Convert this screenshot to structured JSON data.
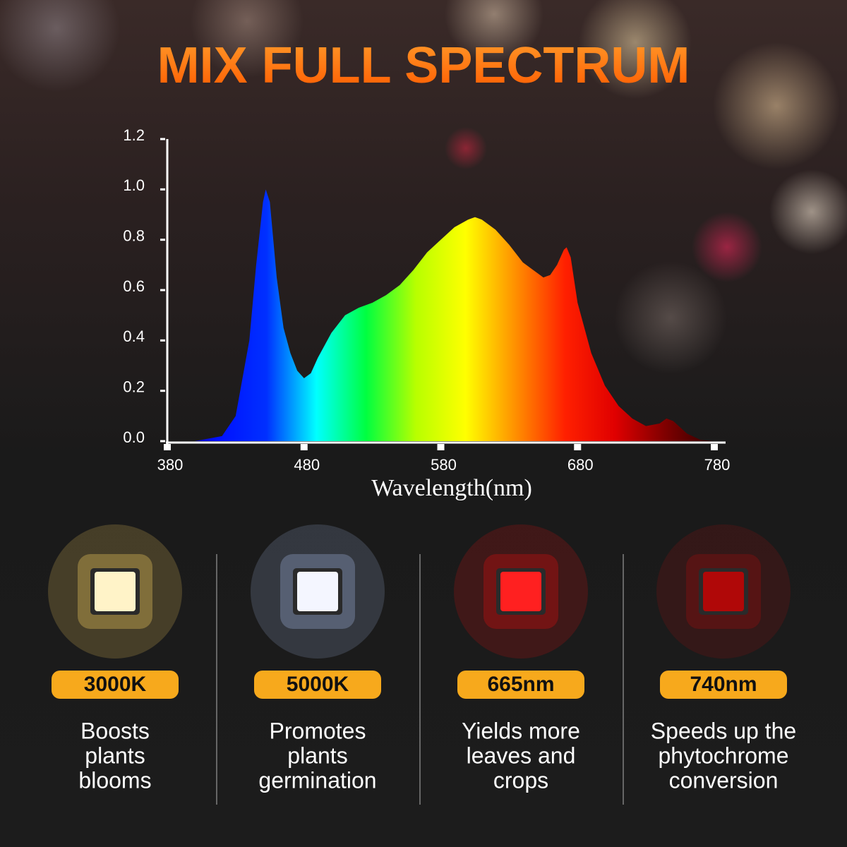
{
  "chart_data": {
    "type": "area",
    "title": "MIX FULL SPECTRUM",
    "x_label": "Wavelength(nm)",
    "x": [
      380,
      400,
      420,
      430,
      440,
      445,
      450,
      452,
      455,
      460,
      465,
      470,
      475,
      480,
      485,
      490,
      500,
      510,
      520,
      530,
      540,
      550,
      560,
      570,
      580,
      590,
      600,
      605,
      610,
      620,
      630,
      640,
      650,
      655,
      660,
      665,
      670,
      672,
      675,
      680,
      690,
      700,
      710,
      720,
      730,
      740,
      745,
      750,
      760,
      770,
      780
    ],
    "values": [
      0,
      0,
      0.02,
      0.1,
      0.4,
      0.7,
      0.95,
      1.0,
      0.95,
      0.65,
      0.45,
      0.35,
      0.28,
      0.25,
      0.27,
      0.33,
      0.43,
      0.5,
      0.53,
      0.55,
      0.58,
      0.62,
      0.68,
      0.75,
      0.8,
      0.85,
      0.88,
      0.89,
      0.88,
      0.84,
      0.78,
      0.71,
      0.67,
      0.65,
      0.66,
      0.7,
      0.76,
      0.77,
      0.73,
      0.55,
      0.35,
      0.22,
      0.14,
      0.09,
      0.06,
      0.07,
      0.09,
      0.08,
      0.03,
      0.005,
      0
    ],
    "fill_colors": [
      "#1a0060",
      "#0010ff",
      "#0030ff",
      "#00ffff",
      "#00ff40",
      "#b8ff00",
      "#ffff00",
      "#ff9000",
      "#ff2000",
      "#e00000",
      "#800000",
      "#300000"
    ],
    "xlim": [
      380,
      780
    ],
    "xticks": [
      380,
      480,
      580,
      680,
      780
    ],
    "ylim": [
      0,
      1.2
    ],
    "yticks": [
      {
        "value": 0,
        "label": "0.0"
      },
      0.2,
      0.4,
      0.6,
      0.8,
      {
        "value": 1,
        "label": "1.0"
      },
      1.2
    ]
  },
  "features": [
    {
      "badge": "3000K",
      "lines": [
        "Boosts",
        "plants",
        "blooms"
      ],
      "chip_color": "#fff3c8",
      "glow": "#c8a850"
    },
    {
      "badge": "5000K",
      "lines": [
        "Promotes",
        "plants",
        "germination"
      ],
      "chip_color": "#f4f6ff",
      "glow": "#8090b0"
    },
    {
      "badge": "665nm",
      "lines": [
        "Yields more",
        "leaves and",
        "crops"
      ],
      "chip_color": "#ff2020",
      "glow": "#b01010"
    },
    {
      "badge": "740nm",
      "lines": [
        "Speeds up the",
        "phytochrome",
        "conversion"
      ],
      "chip_color": "#b00808",
      "glow": "#801010"
    }
  ]
}
